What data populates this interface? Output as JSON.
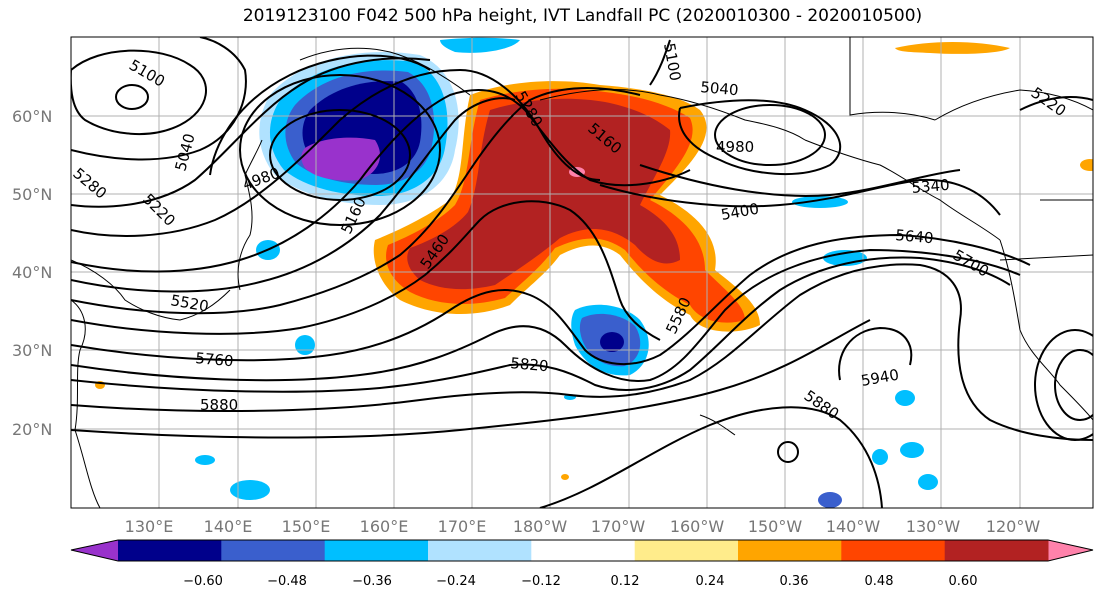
{
  "title": "2019123100 F042 500 hPa height, IVT Landfall PC (2020010300 - 2020010500)",
  "lat_labels": [
    "60°N",
    "50°N",
    "40°N",
    "30°N",
    "20°N"
  ],
  "lon_labels": [
    "130°E",
    "140°E",
    "150°E",
    "160°E",
    "170°E",
    "180°W",
    "170°W",
    "160°W",
    "150°W",
    "140°W",
    "130°W",
    "120°W"
  ],
  "contour_labels": [
    "5100",
    "5040",
    "4980",
    "5280",
    "5220",
    "5160",
    "5280",
    "5160",
    "5040",
    "4980",
    "5340",
    "5400",
    "5460",
    "5640",
    "5700",
    "5520",
    "5580",
    "5760",
    "5820",
    "5880",
    "5880",
    "5940",
    "5220",
    "5100"
  ],
  "colorbar": {
    "ticks": [
      "−0.60",
      "−0.48",
      "−0.36",
      "−0.24",
      "−0.12",
      "0.12",
      "0.24",
      "0.36",
      "0.48",
      "0.60"
    ],
    "colors": [
      "#9932cc",
      "#00008b",
      "#3a5fcd",
      "#00bfff",
      "#b0e2ff",
      "#ffffff",
      "#ffec8b",
      "#ffa500",
      "#ff4500",
      "#b22222",
      "#ff82ab"
    ]
  }
}
